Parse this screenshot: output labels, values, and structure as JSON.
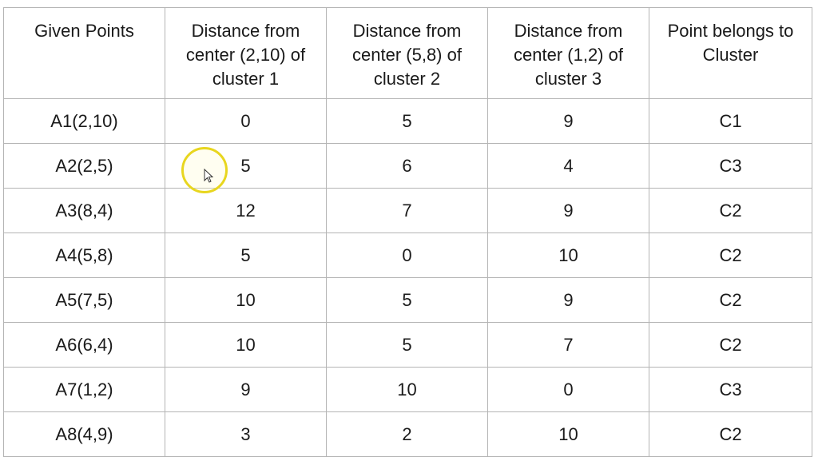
{
  "table": {
    "headers": [
      "Given Points",
      "Distance from center (2,10) of cluster 1",
      "Distance from center (5,8) of cluster 2",
      "Distance from center (1,2) of cluster 3",
      "Point belongs to Cluster"
    ],
    "rows": [
      [
        "A1(2,10)",
        "0",
        "5",
        "9",
        "C1"
      ],
      [
        "A2(2,5)",
        "5",
        "6",
        "4",
        "C3"
      ],
      [
        "A3(8,4)",
        "12",
        "7",
        "9",
        "C2"
      ],
      [
        "A4(5,8)",
        "5",
        "0",
        "10",
        "C2"
      ],
      [
        "A5(7,5)",
        "10",
        "5",
        "9",
        "C2"
      ],
      [
        "A6(6,4)",
        "10",
        "5",
        "7",
        "C2"
      ],
      [
        "A7(1,2)",
        "9",
        "10",
        "0",
        "C3"
      ],
      [
        "A8(4,9)",
        "3",
        "2",
        "10",
        "C2"
      ]
    ]
  },
  "cursor": {
    "icon": "mouse-pointer-icon",
    "highlight_color": "#e8d61f"
  }
}
